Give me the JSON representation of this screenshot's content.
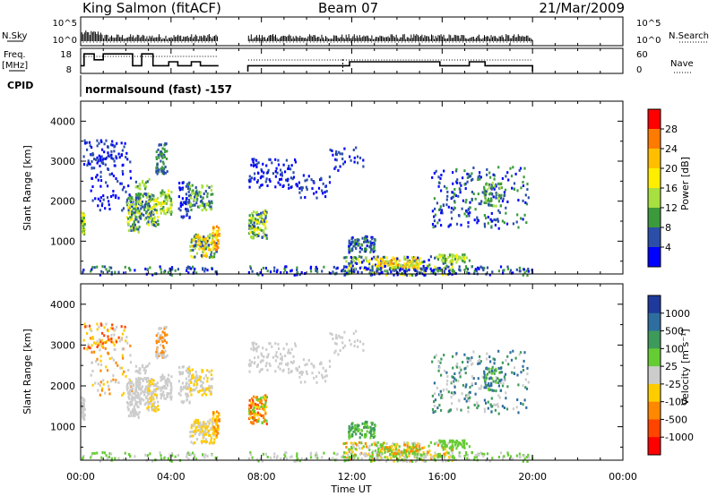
{
  "header": {
    "station": "King Salmon (fitACF)",
    "beam": "Beam 07",
    "date": "21/Mar/2009"
  },
  "nsky_panel": {
    "left_label": "N.Sky",
    "right_label": "N.Search",
    "left_ticks": [
      "10^5",
      "10^0"
    ],
    "right_ticks": [
      "10^5",
      "10^0"
    ]
  },
  "freq_panel": {
    "left_label_top": "Freq.",
    "left_label_unit": "[MHz]",
    "right_label": "Nave",
    "left_ticks": [
      "18",
      "8"
    ],
    "right_ticks": [
      "60",
      "0"
    ]
  },
  "cpid": {
    "label": "CPID",
    "text": "normalsound (fast) -157"
  },
  "time_axis": {
    "label": "Time UT",
    "ticks": [
      "00:00",
      "04:00",
      "08:00",
      "12:00",
      "16:00",
      "20:00",
      "00:00"
    ]
  },
  "chart_data": [
    {
      "type": "heatmap",
      "quantity": "Power",
      "ylabel": "Slant Range [km]",
      "xlabel": "Time UT",
      "ylim": [
        180,
        4500
      ],
      "xlim": [
        0,
        24
      ],
      "y_ticks": [
        "1000",
        "2000",
        "3000",
        "4000"
      ],
      "colorbar": {
        "label": "Power [dB]",
        "ticks": [
          "28",
          "24",
          "20",
          "16",
          "12",
          "8",
          "4"
        ],
        "colors": [
          "#ff0000",
          "#ff7a00",
          "#ffbf00",
          "#ffee00",
          "#a8e040",
          "#3c9a3c",
          "#2b4fa8",
          "#0000ff"
        ]
      },
      "data_gaps_hours": [
        [
          6.1,
          7.4
        ],
        [
          20.0,
          24.0
        ]
      ]
    },
    {
      "type": "heatmap",
      "quantity": "Velocity",
      "ylabel": "Slant Range [km]",
      "xlabel": "Time UT",
      "ylim": [
        180,
        4500
      ],
      "xlim": [
        0,
        24
      ],
      "y_ticks": [
        "1000",
        "2000",
        "3000",
        "4000"
      ],
      "colorbar": {
        "label": "Velocity [m s⁻¹]",
        "ticks": [
          "1000",
          "500",
          "100",
          "25",
          "-25",
          "-100",
          "-500",
          "-1000"
        ],
        "colors": [
          "#1f3a9c",
          "#2e6e9e",
          "#3e9a5a",
          "#66cc33",
          "#cccccc",
          "#ffcc00",
          "#ff8800",
          "#ff4400",
          "#ff0000"
        ]
      },
      "data_gaps_hours": [
        [
          6.1,
          7.4
        ],
        [
          20.0,
          24.0
        ]
      ]
    }
  ]
}
